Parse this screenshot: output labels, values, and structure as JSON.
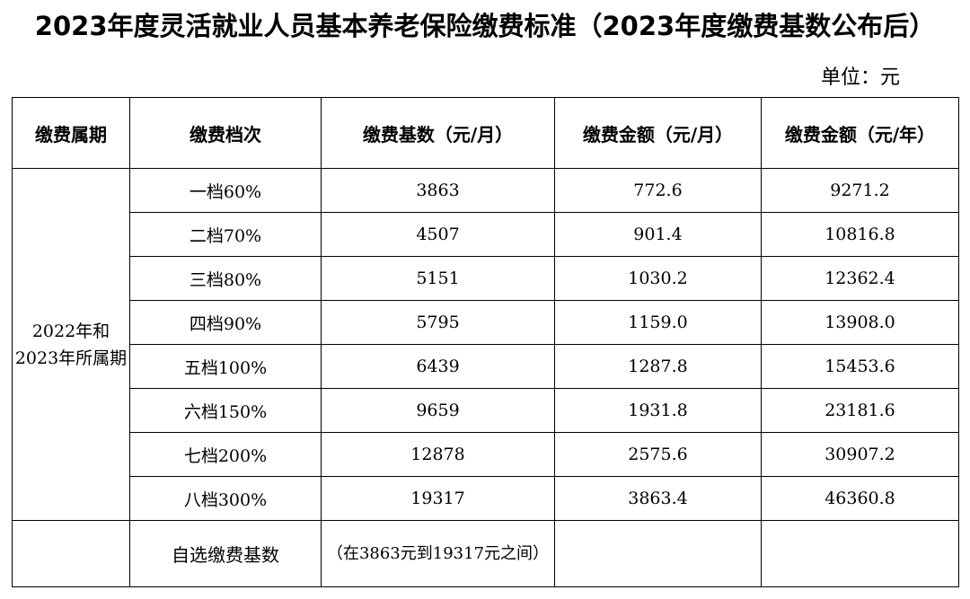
{
  "title": "2023年度灵活就业人员基本养老保险缴费标准（2023年度缴费基数公布后）",
  "unit": "单位：元",
  "headers": [
    "缴费属期",
    "缴费档次",
    "缴费基数（元/月）",
    "缴费金额（元/月）",
    "缴费金额（元/年）"
  ],
  "period": "2022年和2023年所属期",
  "rows": [
    {
      "grade": "一档60%",
      "base": "3863",
      "monthly": "772.6",
      "yearly": "9271.2"
    },
    {
      "grade": "二档70%",
      "base": "4507",
      "monthly": "901.4",
      "yearly": "10816.8"
    },
    {
      "grade": "三档80%",
      "base": "5151",
      "monthly": "1030.2",
      "yearly": "12362.4"
    },
    {
      "grade": "四档90%",
      "base": "5795",
      "monthly": "1159.0",
      "yearly": "13908.0"
    },
    {
      "grade": "五档100%",
      "base": "6439",
      "monthly": "1287.8",
      "yearly": "15453.6"
    },
    {
      "grade": "六档150%",
      "base": "9659",
      "monthly": "1931.8",
      "yearly": "23181.6"
    },
    {
      "grade": "七档200%",
      "base": "12878",
      "monthly": "2575.6",
      "yearly": "30907.2"
    },
    {
      "grade": "八档300%",
      "base": "19317",
      "monthly": "3863.4",
      "yearly": "46360.8"
    }
  ],
  "custom": {
    "grade": "自选缴费基数",
    "base": "（在3863元到19317元之间）",
    "monthly": "",
    "yearly": ""
  }
}
